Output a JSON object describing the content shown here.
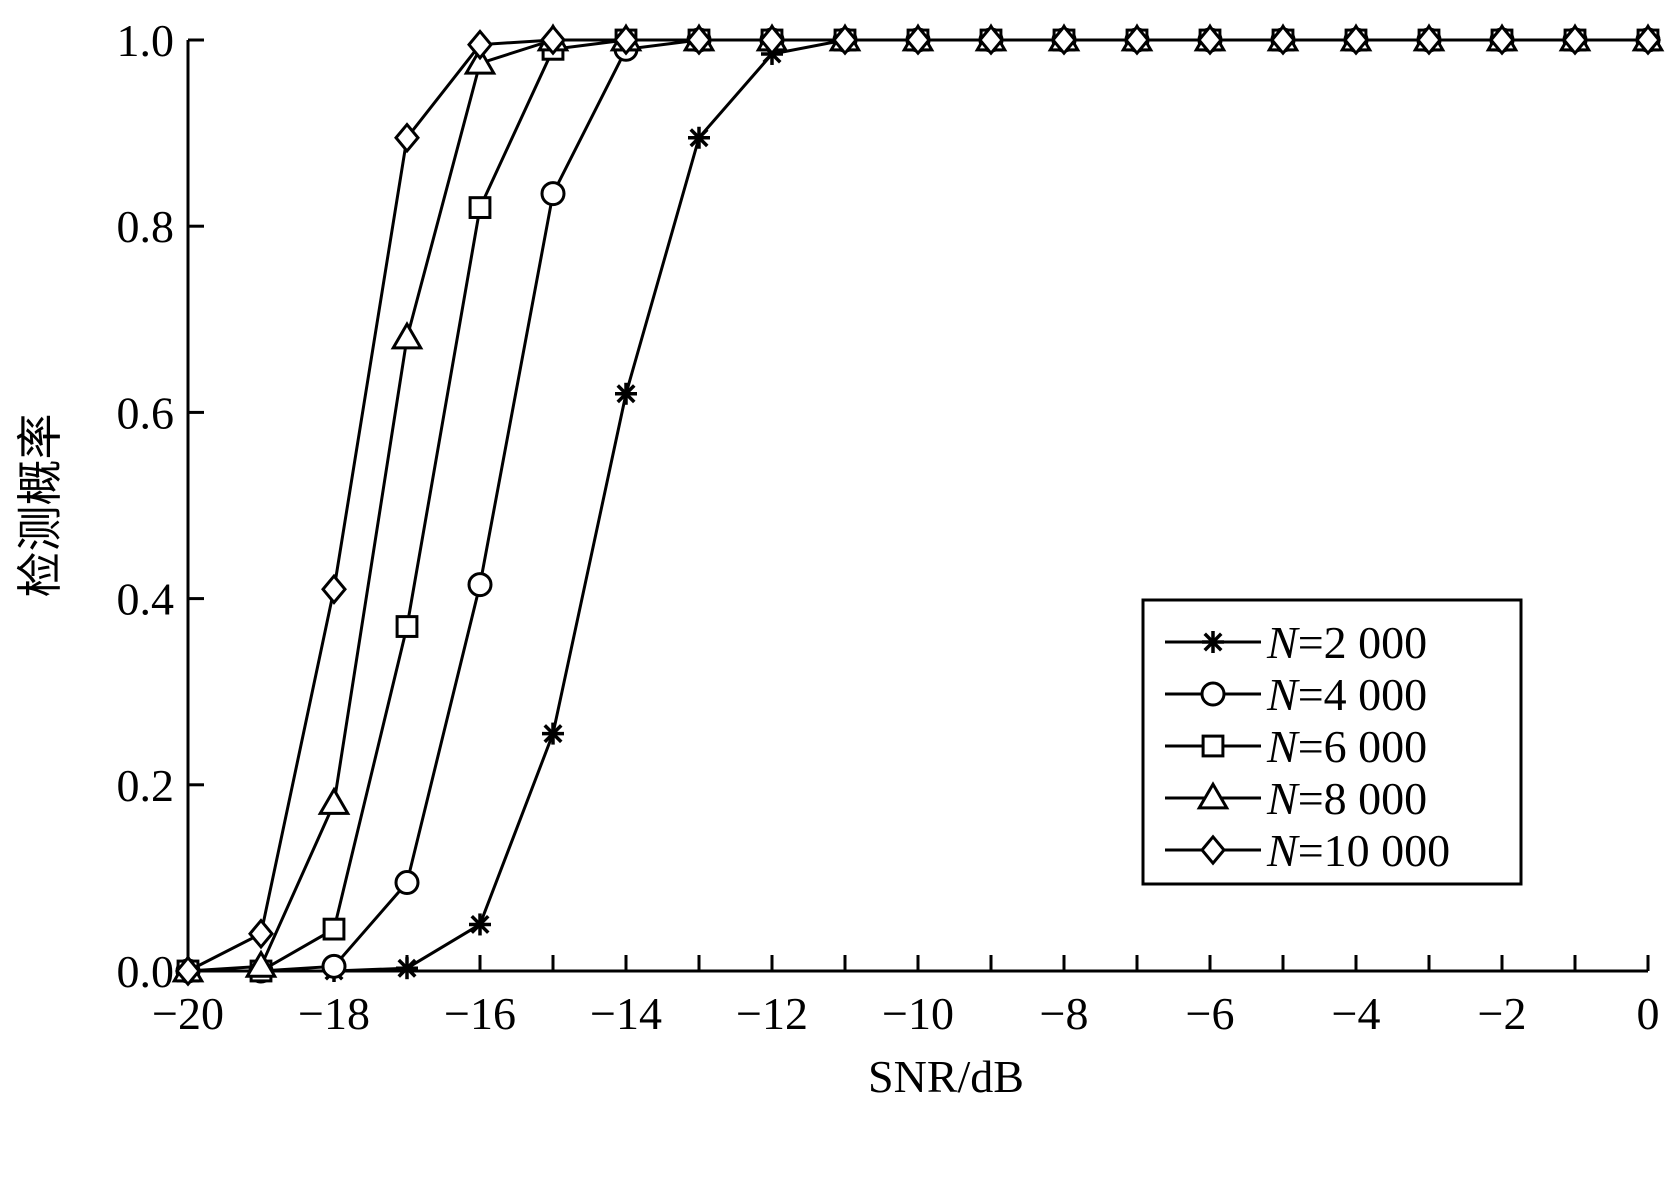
{
  "chart_data": {
    "type": "line",
    "xlabel": "SNR/dB",
    "ylabel": "检测概率",
    "xlim": [
      -20,
      0
    ],
    "ylim": [
      0,
      1
    ],
    "x_ticks": [
      -20,
      -18,
      -16,
      -14,
      -12,
      -10,
      -8,
      -6,
      -4,
      -2,
      0
    ],
    "x_tick_labels": [
      "−20",
      "−18",
      "−16",
      "−14",
      "−12",
      "−10",
      "−8",
      "−6",
      "−4",
      "−2",
      "0"
    ],
    "y_ticks": [
      0,
      0.2,
      0.4,
      0.6,
      0.8,
      1.0
    ],
    "y_tick_labels": [
      "0.0",
      "0.2",
      "0.4",
      "0.6",
      "0.8",
      "1.0"
    ],
    "grid": false,
    "legend_position": "right",
    "x": [
      -20,
      -19,
      -18,
      -17,
      -16,
      -15,
      -14,
      -13,
      -12,
      -11,
      -10,
      -9,
      -8,
      -7,
      -6,
      -5,
      -4,
      -3,
      -2,
      -1,
      0
    ],
    "series": [
      {
        "name": "N=2 000",
        "name_italic": "N",
        "name_rest": "=2 000",
        "marker": "star",
        "values": [
          0,
          0,
          0,
          0.003,
          0.05,
          0.255,
          0.62,
          0.895,
          0.985,
          1,
          1,
          1,
          1,
          1,
          1,
          1,
          1,
          1,
          1,
          1,
          1
        ]
      },
      {
        "name": "N=4 000",
        "name_italic": "N",
        "name_rest": "=4 000",
        "marker": "circle",
        "values": [
          0,
          0,
          0.005,
          0.095,
          0.415,
          0.835,
          0.99,
          1,
          1,
          1,
          1,
          1,
          1,
          1,
          1,
          1,
          1,
          1,
          1,
          1,
          1
        ]
      },
      {
        "name": "N=6 000",
        "name_italic": "N",
        "name_rest": "=6 000",
        "marker": "square",
        "values": [
          0,
          0,
          0.045,
          0.37,
          0.82,
          0.99,
          1,
          1,
          1,
          1,
          1,
          1,
          1,
          1,
          1,
          1,
          1,
          1,
          1,
          1,
          1
        ]
      },
      {
        "name": "N=8 000",
        "name_italic": "N",
        "name_rest": "=8 000",
        "marker": "triangle",
        "values": [
          0,
          0.005,
          0.18,
          0.68,
          0.975,
          1,
          1,
          1,
          1,
          1,
          1,
          1,
          1,
          1,
          1,
          1,
          1,
          1,
          1,
          1,
          1
        ]
      },
      {
        "name": "N=10 000",
        "name_italic": "N",
        "name_rest": "=10 000",
        "marker": "diamond",
        "values": [
          0,
          0.04,
          0.41,
          0.895,
          0.995,
          1,
          1,
          1,
          1,
          1,
          1,
          1,
          1,
          1,
          1,
          1,
          1,
          1,
          1,
          1,
          1
        ]
      }
    ]
  }
}
